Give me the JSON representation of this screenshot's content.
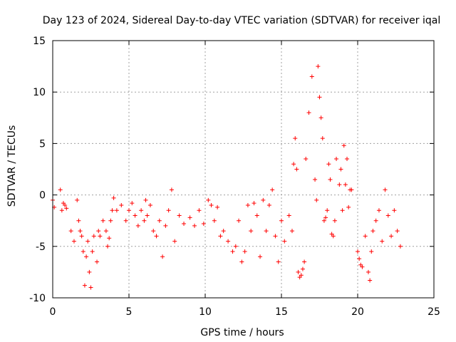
{
  "chart_data": {
    "type": "scatter",
    "title": "Day 123 of 2024, Sidereal Day-to-day VTEC variation (SDTVAR) for receiver iqal",
    "xlabel": "GPS time / hours",
    "ylabel": "SDTVAR / TECUs",
    "xlim": [
      0,
      25
    ],
    "ylim": [
      -10,
      15
    ],
    "xticks": [
      0,
      5,
      10,
      15,
      20,
      25
    ],
    "yticks": [
      -10,
      -5,
      0,
      5,
      10,
      15
    ],
    "grid": true,
    "marker": "+",
    "color": "#ff0000",
    "series": [
      {
        "name": "SDTVAR",
        "x": [
          0.0,
          0.1,
          0.5,
          0.6,
          0.7,
          0.8,
          0.9,
          1.2,
          1.4,
          1.6,
          1.7,
          1.8,
          1.9,
          2.0,
          2.1,
          2.2,
          2.3,
          2.4,
          2.5,
          2.6,
          2.7,
          2.9,
          3.0,
          3.1,
          3.3,
          3.5,
          3.6,
          3.7,
          3.8,
          3.9,
          4.0,
          4.2,
          4.5,
          4.8,
          5.0,
          5.2,
          5.4,
          5.6,
          5.8,
          6.0,
          6.1,
          6.2,
          6.4,
          6.6,
          6.8,
          7.0,
          7.2,
          7.4,
          7.6,
          7.8,
          8.0,
          8.3,
          8.6,
          9.0,
          9.3,
          9.6,
          9.9,
          10.2,
          10.4,
          10.6,
          10.8,
          11.0,
          11.2,
          11.5,
          11.8,
          12.0,
          12.2,
          12.4,
          12.6,
          12.8,
          13.0,
          13.2,
          13.4,
          13.6,
          13.8,
          14.0,
          14.2,
          14.4,
          14.6,
          14.8,
          15.0,
          15.2,
          15.5,
          15.7,
          15.8,
          15.9,
          16.0,
          16.1,
          16.2,
          16.3,
          16.4,
          16.5,
          16.6,
          16.8,
          17.0,
          17.2,
          17.3,
          17.4,
          17.5,
          17.6,
          17.7,
          17.8,
          17.9,
          18.0,
          18.1,
          18.2,
          18.3,
          18.4,
          18.5,
          18.6,
          18.8,
          18.9,
          19.0,
          19.1,
          19.2,
          19.3,
          19.4,
          19.5,
          19.6,
          20.0,
          20.1,
          20.2,
          20.3,
          20.5,
          20.7,
          20.8,
          20.9,
          21.0,
          21.2,
          21.4,
          21.6,
          21.8,
          22.0,
          22.2,
          22.4,
          22.6,
          22.8
        ],
        "y": [
          -0.5,
          -1.2,
          0.5,
          -1.5,
          -0.8,
          -1.0,
          -1.3,
          -3.5,
          -4.5,
          -0.5,
          -2.5,
          -3.5,
          -4.0,
          -5.5,
          -8.8,
          -6.0,
          -4.5,
          -7.5,
          -9.0,
          -5.5,
          -4.0,
          -6.5,
          -3.5,
          -4.0,
          -2.5,
          -3.5,
          -5.0,
          -4.2,
          -2.5,
          -1.5,
          -0.3,
          -1.5,
          -1.0,
          -2.5,
          -1.5,
          -0.8,
          -2.0,
          -3.0,
          -1.5,
          -2.5,
          -0.5,
          -2.0,
          -1.0,
          -3.5,
          -4.0,
          -2.5,
          -6.0,
          -3.0,
          -1.5,
          0.5,
          -4.5,
          -2.0,
          -2.8,
          -2.2,
          -3.0,
          -1.5,
          -2.8,
          -0.5,
          -1.0,
          -2.5,
          -1.2,
          -4.0,
          -3.5,
          -4.5,
          -5.5,
          -5.0,
          -2.5,
          -6.5,
          -5.5,
          -1.0,
          -3.5,
          -0.8,
          -2.0,
          -6.0,
          -0.5,
          -3.5,
          -1.0,
          0.5,
          -4.0,
          -6.5,
          -2.5,
          -4.5,
          -2.0,
          -3.5,
          3.0,
          5.5,
          2.5,
          -7.5,
          -8.0,
          -7.8,
          -7.2,
          -6.5,
          3.5,
          8.0,
          11.5,
          1.5,
          -0.5,
          12.5,
          9.5,
          7.5,
          5.5,
          -2.5,
          -2.2,
          -1.5,
          3.0,
          1.5,
          -3.8,
          -4.0,
          -2.5,
          3.5,
          1.0,
          2.5,
          -1.5,
          4.8,
          1.0,
          3.5,
          -1.2,
          0.5,
          0.5,
          -5.5,
          -6.2,
          -6.8,
          -7.0,
          -4.0,
          -7.5,
          -8.3,
          -5.5,
          -3.5,
          -2.5,
          -1.5,
          -4.5,
          0.5,
          -2.0,
          -4.0,
          -1.5,
          -3.5,
          -5.0
        ]
      }
    ]
  }
}
